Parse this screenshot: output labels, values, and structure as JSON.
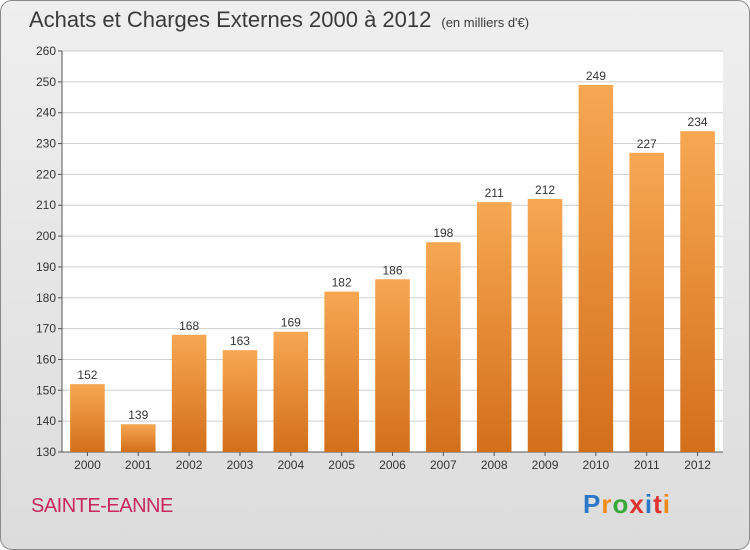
{
  "title": "Achats et Charges Externes 2000 à 2012",
  "unit": "(en milliers d'€)",
  "place": "SAINTE-EANNE",
  "logo": {
    "text": "Proxiti",
    "letter_colors": [
      "#2a78c8",
      "#f08a1a",
      "#3aa83a",
      "#e0322e",
      "#2a78c8",
      "#e0322e",
      "#f08a1a"
    ]
  },
  "colors": {
    "bar_top": "#f7a752",
    "bar_bottom": "#d36f1b",
    "grid": "#cfcfcf",
    "axis": "#555555",
    "plot_bg": "#ffffff",
    "label": "#333333"
  },
  "chart_data": {
    "type": "bar",
    "categories": [
      "2000",
      "2001",
      "2002",
      "2003",
      "2004",
      "2005",
      "2006",
      "2007",
      "2008",
      "2009",
      "2010",
      "2011",
      "2012"
    ],
    "values": [
      152,
      139,
      168,
      163,
      169,
      182,
      186,
      198,
      211,
      212,
      249,
      227,
      234
    ],
    "ylim": [
      130,
      260
    ],
    "yticks": [
      130,
      140,
      150,
      160,
      170,
      180,
      190,
      200,
      210,
      220,
      230,
      240,
      250,
      260
    ],
    "grid": true
  }
}
